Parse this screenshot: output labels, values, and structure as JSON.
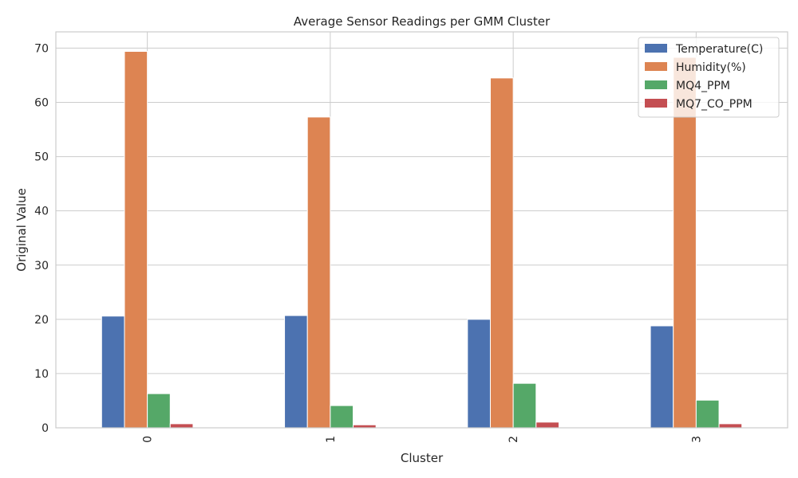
{
  "chart_data": {
    "type": "bar",
    "title": "Average Sensor Readings per GMM Cluster",
    "xlabel": "Cluster",
    "ylabel": "Original Value",
    "categories": [
      "0",
      "1",
      "2",
      "3"
    ],
    "series": [
      {
        "name": "Temperature(C)",
        "color": "#4c72b0",
        "values": [
          20.6,
          20.7,
          20.0,
          18.8
        ]
      },
      {
        "name": "Humidity(%)",
        "color": "#dd8452",
        "values": [
          69.4,
          57.3,
          64.5,
          68.3
        ]
      },
      {
        "name": "MQ4_PPM",
        "color": "#55a868",
        "values": [
          6.3,
          4.1,
          8.2,
          5.1
        ]
      },
      {
        "name": "MQ7_CO_PPM",
        "color": "#c44e52",
        "values": [
          0.75,
          0.55,
          1.05,
          0.75
        ]
      }
    ],
    "ylim": [
      0,
      73
    ],
    "yticks": [
      0,
      10,
      20,
      30,
      40,
      50,
      60,
      70
    ],
    "grid": true,
    "legend_position": "top-right"
  }
}
